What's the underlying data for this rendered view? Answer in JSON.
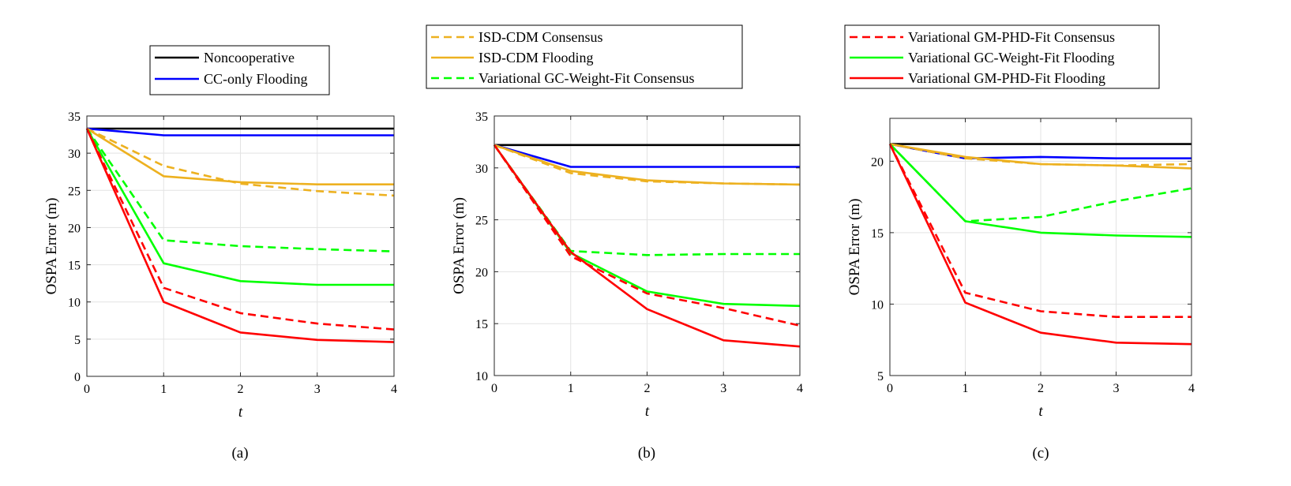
{
  "figure": {
    "panels": [
      {
        "caption": "(a)",
        "legend_entries": [
          "Noncooperative",
          "CC-only Flooding"
        ]
      },
      {
        "caption": "(b)",
        "legend_entries": [
          "ISD-CDM Consensus",
          "ISD-CDM Flooding",
          "Variational GC-Weight-Fit Consensus"
        ]
      },
      {
        "caption": "(c)",
        "legend_entries": [
          "Variational GM-PHD-Fit Consensus",
          "Variational GC-Weight-Fit Flooding",
          "Variational GM-PHD-Fit Flooding"
        ]
      }
    ]
  },
  "styles": {
    "Noncooperative": {
      "color": "#000000",
      "dash": "solid"
    },
    "CC-only Flooding": {
      "color": "#0000ff",
      "dash": "solid"
    },
    "ISD-CDM Consensus": {
      "color": "#edb120",
      "dash": "dashed"
    },
    "ISD-CDM Flooding": {
      "color": "#edb120",
      "dash": "solid"
    },
    "Variational GC-Weight-Fit Consensus": {
      "color": "#00ff00",
      "dash": "dashed"
    },
    "Variational GM-PHD-Fit Consensus": {
      "color": "#ff0000",
      "dash": "dashed"
    },
    "Variational GC-Weight-Fit Flooding": {
      "color": "#00ff00",
      "dash": "solid"
    },
    "Variational GM-PHD-Fit Flooding": {
      "color": "#ff0000",
      "dash": "solid"
    }
  },
  "chart_data": [
    {
      "type": "line",
      "panel": "(a)",
      "xlabel": "t",
      "ylabel": "OSPA Error (m)",
      "xlim": [
        0,
        4
      ],
      "ylim": [
        0,
        35
      ],
      "xticks": [
        0,
        1,
        2,
        3,
        4
      ],
      "yticks": [
        0,
        5,
        10,
        15,
        20,
        25,
        30,
        35
      ],
      "grid": true,
      "x": [
        0,
        1,
        2,
        3,
        4
      ],
      "series": [
        {
          "name": "Noncooperative",
          "values": [
            33.3,
            33.3,
            33.3,
            33.3,
            33.3
          ]
        },
        {
          "name": "CC-only Flooding",
          "values": [
            33.3,
            32.4,
            32.4,
            32.4,
            32.4
          ]
        },
        {
          "name": "ISD-CDM Consensus",
          "values": [
            33.3,
            28.3,
            25.9,
            24.9,
            24.3
          ]
        },
        {
          "name": "ISD-CDM Flooding",
          "values": [
            33.3,
            26.9,
            26.1,
            25.8,
            25.8
          ]
        },
        {
          "name": "Variational GC-Weight-Fit Consensus",
          "values": [
            33.3,
            18.3,
            17.5,
            17.1,
            16.8
          ]
        },
        {
          "name": "Variational GC-Weight-Fit Flooding",
          "values": [
            33.3,
            15.2,
            12.8,
            12.3,
            12.3
          ]
        },
        {
          "name": "Variational GM-PHD-Fit Consensus",
          "values": [
            33.3,
            11.9,
            8.5,
            7.1,
            6.3
          ]
        },
        {
          "name": "Variational GM-PHD-Fit Flooding",
          "values": [
            33.3,
            10.0,
            5.9,
            4.9,
            4.6
          ]
        }
      ]
    },
    {
      "type": "line",
      "panel": "(b)",
      "xlabel": "t",
      "ylabel": "OSPA Error (m)",
      "xlim": [
        0,
        4
      ],
      "ylim": [
        10,
        35
      ],
      "xticks": [
        0,
        1,
        2,
        3,
        4
      ],
      "yticks": [
        10,
        15,
        20,
        25,
        30,
        35
      ],
      "grid": true,
      "x": [
        0,
        1,
        2,
        3,
        4
      ],
      "series": [
        {
          "name": "Noncooperative",
          "values": [
            32.2,
            32.2,
            32.2,
            32.2,
            32.2
          ]
        },
        {
          "name": "CC-only Flooding",
          "values": [
            32.2,
            30.1,
            30.1,
            30.1,
            30.1
          ]
        },
        {
          "name": "ISD-CDM Consensus",
          "values": [
            32.2,
            29.5,
            28.7,
            28.5,
            28.4
          ]
        },
        {
          "name": "ISD-CDM Flooding",
          "values": [
            32.2,
            29.7,
            28.8,
            28.5,
            28.4
          ]
        },
        {
          "name": "Variational GC-Weight-Fit Consensus",
          "values": [
            32.2,
            22.0,
            21.6,
            21.7,
            21.7
          ]
        },
        {
          "name": "Variational GC-Weight-Fit Flooding",
          "values": [
            32.2,
            21.8,
            18.1,
            16.9,
            16.7
          ]
        },
        {
          "name": "Variational GM-PHD-Fit Consensus",
          "values": [
            32.2,
            21.5,
            17.9,
            16.5,
            14.8
          ]
        },
        {
          "name": "Variational GM-PHD-Fit Flooding",
          "values": [
            32.2,
            21.9,
            16.4,
            13.4,
            12.8
          ]
        }
      ]
    },
    {
      "type": "line",
      "panel": "(c)",
      "xlabel": "t",
      "ylabel": "OSPA Error (m)",
      "xlim": [
        0,
        4
      ],
      "ylim": [
        5,
        23
      ],
      "xticks": [
        0,
        1,
        2,
        3,
        4
      ],
      "yticks": [
        5,
        10,
        15,
        20
      ],
      "grid": true,
      "x": [
        0,
        1,
        2,
        3,
        4
      ],
      "series": [
        {
          "name": "Noncooperative",
          "values": [
            21.2,
            21.2,
            21.2,
            21.2,
            21.2
          ]
        },
        {
          "name": "CC-only Flooding",
          "values": [
            21.2,
            20.2,
            20.3,
            20.2,
            20.2
          ]
        },
        {
          "name": "ISD-CDM Consensus",
          "values": [
            21.2,
            20.2,
            19.8,
            19.7,
            19.8
          ]
        },
        {
          "name": "ISD-CDM Flooding",
          "values": [
            21.2,
            20.3,
            19.8,
            19.7,
            19.5
          ]
        },
        {
          "name": "Variational GC-Weight-Fit Consensus",
          "values": [
            21.2,
            15.8,
            16.1,
            17.2,
            18.1
          ]
        },
        {
          "name": "Variational GC-Weight-Fit Flooding",
          "values": [
            21.2,
            15.8,
            15.0,
            14.8,
            14.7
          ]
        },
        {
          "name": "Variational GM-PHD-Fit Consensus",
          "values": [
            21.2,
            10.8,
            9.5,
            9.1,
            9.1
          ]
        },
        {
          "name": "Variational GM-PHD-Fit Flooding",
          "values": [
            21.2,
            10.1,
            8.0,
            7.3,
            7.2
          ]
        }
      ]
    }
  ]
}
